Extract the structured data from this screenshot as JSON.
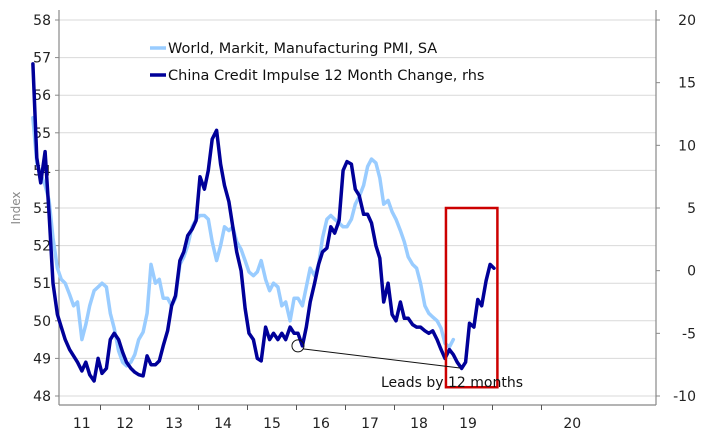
{
  "chart_data": {
    "type": "line",
    "title": "",
    "ylabel": "Index",
    "y2label": "",
    "xlabel": "",
    "x_tick_labels": [
      "11",
      "12",
      "13",
      "14",
      "15",
      "16",
      "17",
      "18",
      "19",
      "20"
    ],
    "x_range_years": [
      2010.6,
      2020.5
    ],
    "ylim": [
      48,
      58
    ],
    "y_ticks": [
      "48",
      "49",
      "50",
      "51",
      "52",
      "53",
      "54",
      "55",
      "56",
      "57",
      "58"
    ],
    "y2lim": [
      -10,
      20
    ],
    "y2_ticks": [
      "-10",
      "-5",
      "0",
      "5",
      "10",
      "15",
      "20"
    ],
    "grid": true,
    "legend_position": "top-left",
    "series": [
      {
        "name": "World, Markit, Manufacturing PMI, SA",
        "axis": "left",
        "color": "#99ccff",
        "points": [
          [
            2010.62,
            55.4
          ],
          [
            2010.7,
            54.2
          ],
          [
            2010.78,
            53.9
          ],
          [
            2010.87,
            53.6
          ],
          [
            2010.95,
            53.2
          ],
          [
            2011.03,
            52.2
          ],
          [
            2011.12,
            51.4
          ],
          [
            2011.2,
            51.1
          ],
          [
            2011.28,
            51.0
          ],
          [
            2011.37,
            50.7
          ],
          [
            2011.45,
            50.4
          ],
          [
            2011.53,
            50.5
          ],
          [
            2011.62,
            49.5
          ],
          [
            2011.7,
            49.9
          ],
          [
            2011.78,
            50.4
          ],
          [
            2011.87,
            50.8
          ],
          [
            2011.95,
            50.9
          ],
          [
            2012.03,
            51.0
          ],
          [
            2012.12,
            50.9
          ],
          [
            2012.2,
            50.2
          ],
          [
            2012.28,
            49.8
          ],
          [
            2012.37,
            49.2
          ],
          [
            2012.45,
            48.9
          ],
          [
            2012.53,
            48.8
          ],
          [
            2012.62,
            48.9
          ],
          [
            2012.7,
            49.1
          ],
          [
            2012.78,
            49.5
          ],
          [
            2012.87,
            49.7
          ],
          [
            2012.95,
            50.2
          ],
          [
            2013.03,
            51.5
          ],
          [
            2013.12,
            51.0
          ],
          [
            2013.2,
            51.1
          ],
          [
            2013.28,
            50.6
          ],
          [
            2013.37,
            50.6
          ],
          [
            2013.45,
            50.4
          ],
          [
            2013.53,
            50.6
          ],
          [
            2013.62,
            51.5
          ],
          [
            2013.7,
            51.7
          ],
          [
            2013.78,
            52.0
          ],
          [
            2013.87,
            52.5
          ],
          [
            2013.95,
            52.7
          ],
          [
            2014.03,
            52.8
          ],
          [
            2014.12,
            52.8
          ],
          [
            2014.2,
            52.7
          ],
          [
            2014.28,
            52.1
          ],
          [
            2014.37,
            51.6
          ],
          [
            2014.45,
            52.0
          ],
          [
            2014.53,
            52.5
          ],
          [
            2014.62,
            52.4
          ],
          [
            2014.7,
            52.5
          ],
          [
            2014.78,
            52.1
          ],
          [
            2014.87,
            51.9
          ],
          [
            2014.95,
            51.6
          ],
          [
            2015.03,
            51.3
          ],
          [
            2015.12,
            51.2
          ],
          [
            2015.2,
            51.3
          ],
          [
            2015.28,
            51.6
          ],
          [
            2015.37,
            51.1
          ],
          [
            2015.45,
            50.8
          ],
          [
            2015.53,
            51.0
          ],
          [
            2015.62,
            50.9
          ],
          [
            2015.7,
            50.4
          ],
          [
            2015.78,
            50.5
          ],
          [
            2015.87,
            50.0
          ],
          [
            2015.95,
            50.6
          ],
          [
            2016.03,
            50.6
          ],
          [
            2016.12,
            50.4
          ],
          [
            2016.2,
            50.9
          ],
          [
            2016.28,
            51.4
          ],
          [
            2016.37,
            51.2
          ],
          [
            2016.45,
            51.5
          ],
          [
            2016.53,
            52.2
          ],
          [
            2016.62,
            52.7
          ],
          [
            2016.7,
            52.8
          ],
          [
            2016.78,
            52.7
          ],
          [
            2016.87,
            52.6
          ],
          [
            2016.95,
            52.5
          ],
          [
            2017.03,
            52.5
          ],
          [
            2017.12,
            52.7
          ],
          [
            2017.2,
            53.1
          ],
          [
            2017.28,
            53.3
          ],
          [
            2017.37,
            53.6
          ],
          [
            2017.45,
            54.1
          ],
          [
            2017.53,
            54.3
          ],
          [
            2017.62,
            54.2
          ],
          [
            2017.7,
            53.8
          ],
          [
            2017.78,
            53.1
          ],
          [
            2017.87,
            53.2
          ],
          [
            2017.95,
            52.9
          ],
          [
            2018.03,
            52.7
          ],
          [
            2018.12,
            52.4
          ],
          [
            2018.2,
            52.1
          ],
          [
            2018.28,
            51.7
          ],
          [
            2018.37,
            51.5
          ],
          [
            2018.45,
            51.4
          ],
          [
            2018.53,
            51.0
          ],
          [
            2018.62,
            50.4
          ],
          [
            2018.7,
            50.2
          ],
          [
            2018.78,
            50.1
          ],
          [
            2018.87,
            50.0
          ],
          [
            2018.95,
            49.8
          ],
          [
            2019.03,
            49.4
          ],
          [
            2019.12,
            49.3
          ],
          [
            2019.2,
            49.5
          ]
        ]
      },
      {
        "name": "China Credit Impulse 12 Month Change, rhs",
        "axis": "right",
        "color": "#000099",
        "points": [
          [
            2010.62,
            16.5
          ],
          [
            2010.7,
            9.0
          ],
          [
            2010.78,
            7.0
          ],
          [
            2010.87,
            9.5
          ],
          [
            2010.95,
            4.5
          ],
          [
            2011.03,
            -1.0
          ],
          [
            2011.12,
            -3.5
          ],
          [
            2011.2,
            -4.5
          ],
          [
            2011.28,
            -5.5
          ],
          [
            2011.37,
            -6.3
          ],
          [
            2011.45,
            -6.8
          ],
          [
            2011.53,
            -7.3
          ],
          [
            2011.62,
            -8.0
          ],
          [
            2011.7,
            -7.3
          ],
          [
            2011.78,
            -8.3
          ],
          [
            2011.87,
            -8.8
          ],
          [
            2011.95,
            -7.0
          ],
          [
            2012.03,
            -8.2
          ],
          [
            2012.12,
            -7.8
          ],
          [
            2012.2,
            -5.5
          ],
          [
            2012.28,
            -5.0
          ],
          [
            2012.37,
            -5.5
          ],
          [
            2012.45,
            -6.5
          ],
          [
            2012.53,
            -7.3
          ],
          [
            2012.62,
            -7.8
          ],
          [
            2012.7,
            -8.1
          ],
          [
            2012.78,
            -8.3
          ],
          [
            2012.87,
            -8.4
          ],
          [
            2012.95,
            -6.8
          ],
          [
            2013.03,
            -7.5
          ],
          [
            2013.12,
            -7.5
          ],
          [
            2013.2,
            -7.2
          ],
          [
            2013.28,
            -6.0
          ],
          [
            2013.37,
            -4.8
          ],
          [
            2013.45,
            -2.8
          ],
          [
            2013.53,
            -2.0
          ],
          [
            2013.62,
            0.8
          ],
          [
            2013.7,
            1.5
          ],
          [
            2013.78,
            2.8
          ],
          [
            2013.87,
            3.3
          ],
          [
            2013.95,
            4.0
          ],
          [
            2014.03,
            7.5
          ],
          [
            2014.12,
            6.5
          ],
          [
            2014.2,
            8.0
          ],
          [
            2014.28,
            10.5
          ],
          [
            2014.37,
            11.2
          ],
          [
            2014.45,
            8.5
          ],
          [
            2014.53,
            6.8
          ],
          [
            2014.62,
            5.5
          ],
          [
            2014.7,
            3.5
          ],
          [
            2014.78,
            1.5
          ],
          [
            2014.87,
            0.0
          ],
          [
            2014.95,
            -3.0
          ],
          [
            2015.03,
            -5.0
          ],
          [
            2015.12,
            -5.5
          ],
          [
            2015.2,
            -7.0
          ],
          [
            2015.28,
            -7.2
          ],
          [
            2015.37,
            -4.5
          ],
          [
            2015.45,
            -5.5
          ],
          [
            2015.53,
            -5.0
          ],
          [
            2015.62,
            -5.5
          ],
          [
            2015.7,
            -5.0
          ],
          [
            2015.78,
            -5.5
          ],
          [
            2015.87,
            -4.5
          ],
          [
            2015.95,
            -5.0
          ],
          [
            2016.03,
            -5.0
          ],
          [
            2016.12,
            -6.0
          ],
          [
            2016.2,
            -4.5
          ],
          [
            2016.28,
            -2.5
          ],
          [
            2016.37,
            -1.0
          ],
          [
            2016.45,
            0.5
          ],
          [
            2016.53,
            1.5
          ],
          [
            2016.62,
            1.8
          ],
          [
            2016.7,
            3.5
          ],
          [
            2016.78,
            3.0
          ],
          [
            2016.87,
            4.0
          ],
          [
            2016.95,
            8.0
          ],
          [
            2017.03,
            8.7
          ],
          [
            2017.12,
            8.5
          ],
          [
            2017.2,
            6.5
          ],
          [
            2017.28,
            6.0
          ],
          [
            2017.37,
            4.5
          ],
          [
            2017.45,
            4.5
          ],
          [
            2017.53,
            3.8
          ],
          [
            2017.62,
            2.0
          ],
          [
            2017.7,
            1.0
          ],
          [
            2017.78,
            -2.5
          ],
          [
            2017.87,
            -1.0
          ],
          [
            2017.95,
            -3.5
          ],
          [
            2018.03,
            -4.0
          ],
          [
            2018.12,
            -2.5
          ],
          [
            2018.2,
            -3.8
          ],
          [
            2018.28,
            -3.8
          ],
          [
            2018.37,
            -4.3
          ],
          [
            2018.45,
            -4.5
          ],
          [
            2018.53,
            -4.5
          ],
          [
            2018.62,
            -4.8
          ],
          [
            2018.7,
            -5.0
          ],
          [
            2018.78,
            -4.8
          ],
          [
            2018.87,
            -5.5
          ],
          [
            2018.95,
            -6.3
          ],
          [
            2019.03,
            -7.0
          ],
          [
            2019.12,
            -6.3
          ],
          [
            2019.2,
            -6.7
          ],
          [
            2019.28,
            -7.3
          ],
          [
            2019.37,
            -7.8
          ],
          [
            2019.45,
            -7.3
          ],
          [
            2019.53,
            -4.2
          ],
          [
            2019.62,
            -4.5
          ],
          [
            2019.7,
            -2.3
          ],
          [
            2019.78,
            -2.8
          ],
          [
            2019.87,
            -0.8
          ],
          [
            2019.95,
            0.5
          ],
          [
            2020.03,
            0.2
          ]
        ]
      }
    ],
    "annotations": [
      {
        "text": "Leads by 12 months",
        "target": [
          2016.03,
          -6.0
        ],
        "marker": "circle",
        "axis": "right"
      },
      {
        "type": "rectangle",
        "color": "#cc0000",
        "x_range_years": [
          2019.05,
          2020.1
        ],
        "y2_range": [
          -9.3,
          5.0
        ]
      }
    ]
  }
}
